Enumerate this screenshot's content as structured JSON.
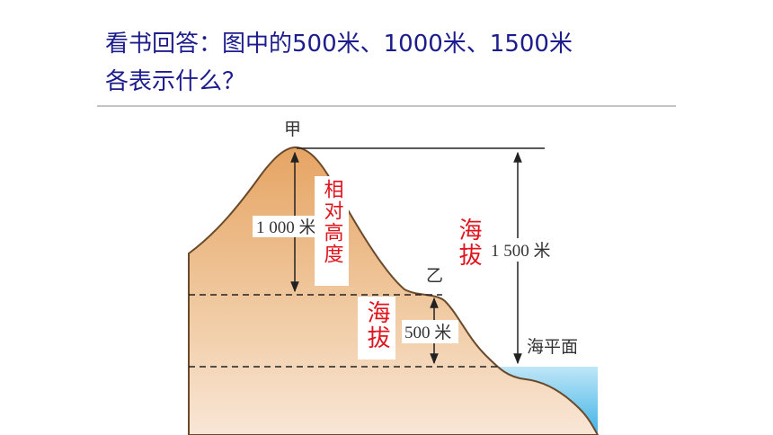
{
  "header": {
    "title_lines": [
      "看书回答：图中的500米、1000米、1500米",
      "各表示什么？"
    ]
  },
  "diagram": {
    "peak_label": "甲",
    "plateau_label": "乙",
    "labels": {
      "relative_height_1000": "1 000 米",
      "relative_height_500": "500 米",
      "altitude_1500": "1 500 米",
      "sea_level": "海平面"
    },
    "annotations": {
      "relative_height": "相对高度",
      "altitude_right": "海拔",
      "altitude_left": "海拔"
    }
  }
}
